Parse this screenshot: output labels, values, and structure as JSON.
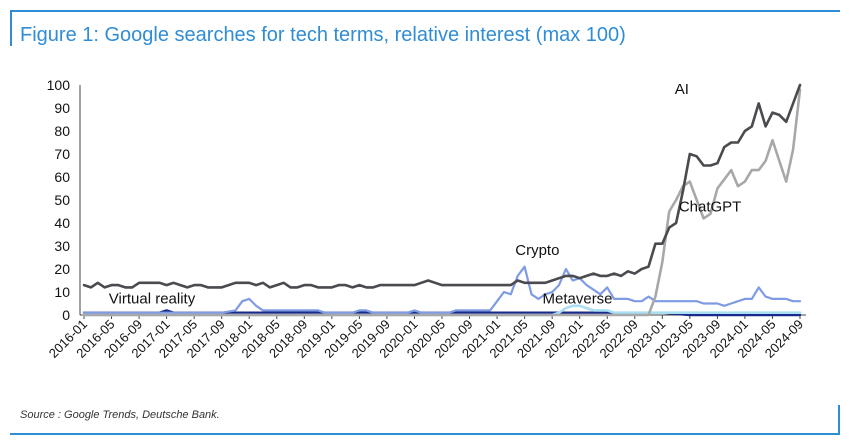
{
  "title": "Figure 1: Google searches for tech terms, relative interest (max 100)",
  "source": "Source : Google Trends, Deutsche Bank.",
  "colors": {
    "frame": "#2f8dd6",
    "title": "#2f8dd6",
    "ai": "#4a4a4f",
    "chatgpt": "#a8a8ab",
    "crypto": "#7f9be3",
    "metaverse": "#a9dff0",
    "virtual_reality": "#1a2a8a"
  },
  "chart_data": {
    "type": "line",
    "ylim": [
      0,
      100
    ],
    "y_ticks": [
      0,
      10,
      20,
      30,
      40,
      50,
      60,
      70,
      80,
      90,
      100
    ],
    "x_start": "2016-01",
    "x_end": "2024-09",
    "x_ticks": [
      "2016-01",
      "2016-05",
      "2016-09",
      "2017-01",
      "2017-05",
      "2017-09",
      "2018-01",
      "2018-05",
      "2018-09",
      "2019-01",
      "2019-05",
      "2019-09",
      "2020-01",
      "2020-05",
      "2020-09",
      "2021-01",
      "2021-05",
      "2021-09",
      "2022-01",
      "2022-05",
      "2022-09",
      "2023-01",
      "2023-05",
      "2023-09",
      "2024-01",
      "2024-05",
      "2024-09"
    ],
    "grid": false,
    "legend": "inline labels",
    "series": [
      {
        "name": "AI",
        "label_pos": [
          2023.15,
          96
        ],
        "points": [
          [
            "2016-01",
            13
          ],
          [
            "2016-02",
            12
          ],
          [
            "2016-03",
            14
          ],
          [
            "2016-04",
            12
          ],
          [
            "2016-05",
            13
          ],
          [
            "2016-06",
            13
          ],
          [
            "2016-07",
            12
          ],
          [
            "2016-08",
            12
          ],
          [
            "2016-09",
            14
          ],
          [
            "2016-10",
            14
          ],
          [
            "2016-11",
            14
          ],
          [
            "2016-12",
            14
          ],
          [
            "2017-01",
            13
          ],
          [
            "2017-02",
            14
          ],
          [
            "2017-03",
            13
          ],
          [
            "2017-04",
            12
          ],
          [
            "2017-05",
            13
          ],
          [
            "2017-06",
            13
          ],
          [
            "2017-07",
            12
          ],
          [
            "2017-08",
            12
          ],
          [
            "2017-09",
            12
          ],
          [
            "2017-10",
            13
          ],
          [
            "2017-11",
            14
          ],
          [
            "2017-12",
            14
          ],
          [
            "2018-01",
            14
          ],
          [
            "2018-02",
            13
          ],
          [
            "2018-03",
            14
          ],
          [
            "2018-04",
            12
          ],
          [
            "2018-05",
            13
          ],
          [
            "2018-06",
            14
          ],
          [
            "2018-07",
            12
          ],
          [
            "2018-08",
            12
          ],
          [
            "2018-09",
            13
          ],
          [
            "2018-10",
            13
          ],
          [
            "2018-11",
            12
          ],
          [
            "2018-12",
            12
          ],
          [
            "2019-01",
            12
          ],
          [
            "2019-02",
            13
          ],
          [
            "2019-03",
            13
          ],
          [
            "2019-04",
            12
          ],
          [
            "2019-05",
            13
          ],
          [
            "2019-06",
            12
          ],
          [
            "2019-07",
            12
          ],
          [
            "2019-08",
            13
          ],
          [
            "2019-09",
            13
          ],
          [
            "2019-10",
            13
          ],
          [
            "2019-11",
            13
          ],
          [
            "2019-12",
            13
          ],
          [
            "2020-01",
            13
          ],
          [
            "2020-02",
            14
          ],
          [
            "2020-03",
            15
          ],
          [
            "2020-04",
            14
          ],
          [
            "2020-05",
            13
          ],
          [
            "2020-06",
            13
          ],
          [
            "2020-07",
            13
          ],
          [
            "2020-08",
            13
          ],
          [
            "2020-09",
            13
          ],
          [
            "2020-10",
            13
          ],
          [
            "2020-11",
            13
          ],
          [
            "2020-12",
            13
          ],
          [
            "2021-01",
            13
          ],
          [
            "2021-02",
            13
          ],
          [
            "2021-03",
            13
          ],
          [
            "2021-04",
            15
          ],
          [
            "2021-05",
            14
          ],
          [
            "2021-06",
            14
          ],
          [
            "2021-07",
            14
          ],
          [
            "2021-08",
            14
          ],
          [
            "2021-09",
            15
          ],
          [
            "2021-10",
            16
          ],
          [
            "2021-11",
            17
          ],
          [
            "2021-12",
            17
          ],
          [
            "2022-01",
            16
          ],
          [
            "2022-02",
            17
          ],
          [
            "2022-03",
            18
          ],
          [
            "2022-04",
            17
          ],
          [
            "2022-05",
            17
          ],
          [
            "2022-06",
            18
          ],
          [
            "2022-07",
            17
          ],
          [
            "2022-08",
            19
          ],
          [
            "2022-09",
            18
          ],
          [
            "2022-10",
            20
          ],
          [
            "2022-11",
            21
          ],
          [
            "2022-12",
            31
          ],
          [
            "2023-01",
            31
          ],
          [
            "2023-02",
            38
          ],
          [
            "2023-03",
            40
          ],
          [
            "2023-04",
            54
          ],
          [
            "2023-05",
            70
          ],
          [
            "2023-06",
            69
          ],
          [
            "2023-07",
            65
          ],
          [
            "2023-08",
            65
          ],
          [
            "2023-09",
            66
          ],
          [
            "2023-10",
            73
          ],
          [
            "2023-11",
            75
          ],
          [
            "2023-12",
            75
          ],
          [
            "2024-01",
            80
          ],
          [
            "2024-02",
            82
          ],
          [
            "2024-03",
            92
          ],
          [
            "2024-04",
            82
          ],
          [
            "2024-05",
            88
          ],
          [
            "2024-06",
            87
          ],
          [
            "2024-07",
            84
          ],
          [
            "2024-08",
            92
          ],
          [
            "2024-09",
            100
          ]
        ]
      },
      {
        "name": "ChatGPT",
        "label_pos": [
          2023.2,
          45
        ],
        "points": [
          [
            "2016-01",
            0
          ],
          [
            "2022-10",
            0
          ],
          [
            "2022-11",
            0
          ],
          [
            "2022-12",
            8
          ],
          [
            "2023-01",
            23
          ],
          [
            "2023-02",
            45
          ],
          [
            "2023-03",
            50
          ],
          [
            "2023-04",
            56
          ],
          [
            "2023-05",
            58
          ],
          [
            "2023-06",
            50
          ],
          [
            "2023-07",
            42
          ],
          [
            "2023-08",
            44
          ],
          [
            "2023-09",
            55
          ],
          [
            "2023-10",
            59
          ],
          [
            "2023-11",
            63
          ],
          [
            "2023-12",
            56
          ],
          [
            "2024-01",
            58
          ],
          [
            "2024-02",
            63
          ],
          [
            "2024-03",
            63
          ],
          [
            "2024-04",
            67
          ],
          [
            "2024-05",
            76
          ],
          [
            "2024-06",
            67
          ],
          [
            "2024-07",
            58
          ],
          [
            "2024-08",
            72
          ],
          [
            "2024-09",
            98
          ]
        ]
      },
      {
        "name": "Crypto",
        "label_pos": [
          2021.22,
          26
        ],
        "points": [
          [
            "2016-01",
            1
          ],
          [
            "2016-06",
            1
          ],
          [
            "2017-01",
            1
          ],
          [
            "2017-06",
            1
          ],
          [
            "2017-09",
            1
          ],
          [
            "2017-11",
            2
          ],
          [
            "2017-12",
            6
          ],
          [
            "2018-01",
            7
          ],
          [
            "2018-02",
            4
          ],
          [
            "2018-03",
            2
          ],
          [
            "2018-06",
            2
          ],
          [
            "2018-09",
            2
          ],
          [
            "2018-11",
            2
          ],
          [
            "2018-12",
            1
          ],
          [
            "2019-03",
            1
          ],
          [
            "2019-04",
            1
          ],
          [
            "2019-05",
            2
          ],
          [
            "2019-06",
            2
          ],
          [
            "2019-07",
            1
          ],
          [
            "2019-12",
            1
          ],
          [
            "2020-01",
            2
          ],
          [
            "2020-02",
            1
          ],
          [
            "2020-06",
            1
          ],
          [
            "2020-07",
            2
          ],
          [
            "2020-12",
            2
          ],
          [
            "2021-01",
            6
          ],
          [
            "2021-02",
            10
          ],
          [
            "2021-03",
            9
          ],
          [
            "2021-04",
            17
          ],
          [
            "2021-05",
            21
          ],
          [
            "2021-06",
            9
          ],
          [
            "2021-07",
            7
          ],
          [
            "2021-08",
            9
          ],
          [
            "2021-09",
            10
          ],
          [
            "2021-10",
            13
          ],
          [
            "2021-11",
            20
          ],
          [
            "2021-12",
            15
          ],
          [
            "2022-01",
            16
          ],
          [
            "2022-02",
            13
          ],
          [
            "2022-03",
            11
          ],
          [
            "2022-04",
            9
          ],
          [
            "2022-05",
            12
          ],
          [
            "2022-06",
            7
          ],
          [
            "2022-07",
            7
          ],
          [
            "2022-08",
            7
          ],
          [
            "2022-09",
            6
          ],
          [
            "2022-10",
            6
          ],
          [
            "2022-11",
            8
          ],
          [
            "2022-12",
            6
          ],
          [
            "2023-06",
            6
          ],
          [
            "2023-07",
            5
          ],
          [
            "2023-08",
            5
          ],
          [
            "2023-09",
            5
          ],
          [
            "2023-10",
            4
          ],
          [
            "2023-11",
            5
          ],
          [
            "2023-12",
            6
          ],
          [
            "2024-01",
            7
          ],
          [
            "2024-02",
            7
          ],
          [
            "2024-03",
            12
          ],
          [
            "2024-04",
            8
          ],
          [
            "2024-05",
            7
          ],
          [
            "2024-06",
            7
          ],
          [
            "2024-07",
            7
          ],
          [
            "2024-08",
            6
          ],
          [
            "2024-09",
            6
          ]
        ]
      },
      {
        "name": "Metaverse",
        "label_pos": [
          2021.55,
          5
        ],
        "points": [
          [
            "2016-01",
            0
          ],
          [
            "2021-09",
            0
          ],
          [
            "2021-10",
            1
          ],
          [
            "2021-11",
            3
          ],
          [
            "2021-12",
            4
          ],
          [
            "2022-01",
            4
          ],
          [
            "2022-02",
            3
          ],
          [
            "2022-03",
            2
          ],
          [
            "2022-04",
            2
          ],
          [
            "2022-05",
            2
          ],
          [
            "2022-06",
            1
          ],
          [
            "2022-07",
            1
          ],
          [
            "2022-08",
            1
          ],
          [
            "2022-09",
            1
          ],
          [
            "2022-10",
            1
          ],
          [
            "2022-11",
            1
          ],
          [
            "2022-12",
            1
          ],
          [
            "2023-01",
            1
          ],
          [
            "2024-09",
            1
          ]
        ]
      },
      {
        "name": "Virtual reality",
        "label_pos": [
          2016.3,
          5
        ],
        "points": [
          [
            "2016-01",
            1
          ],
          [
            "2016-06",
            1
          ],
          [
            "2016-09",
            1
          ],
          [
            "2016-10",
            1
          ],
          [
            "2016-11",
            1
          ],
          [
            "2016-12",
            1
          ],
          [
            "2017-01",
            2
          ],
          [
            "2017-02",
            1
          ],
          [
            "2017-06",
            1
          ],
          [
            "2017-12",
            1
          ],
          [
            "2018-06",
            1
          ],
          [
            "2019-06",
            1
          ],
          [
            "2020-06",
            1
          ],
          [
            "2021-06",
            1
          ],
          [
            "2022-06",
            1
          ],
          [
            "2023-01",
            1
          ],
          [
            "2023-05",
            0
          ],
          [
            "2024-09",
            0
          ]
        ]
      }
    ]
  }
}
